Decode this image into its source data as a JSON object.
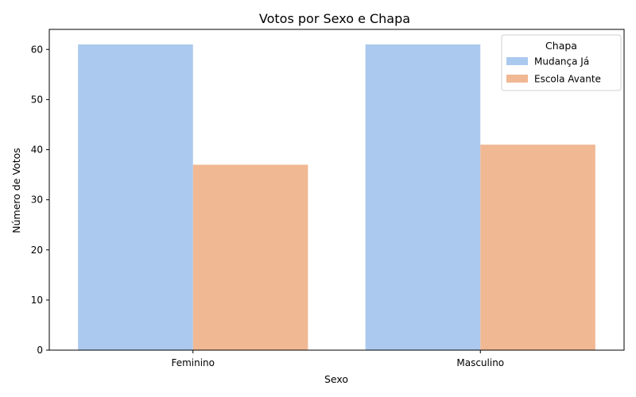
{
  "chart_data": {
    "type": "bar",
    "title": "Votos por Sexo e Chapa",
    "xlabel": "Sexo",
    "ylabel": "Número de Votos",
    "categories": [
      "Feminino",
      "Masculino"
    ],
    "series": [
      {
        "name": "Mudança Já",
        "values": [
          61,
          61
        ],
        "color": "#abc9ee"
      },
      {
        "name": "Escola Avante",
        "values": [
          37,
          41
        ],
        "color": "#f0b893"
      }
    ],
    "ylim": [
      0,
      64
    ],
    "yticks": [
      0,
      10,
      20,
      30,
      40,
      50,
      60
    ],
    "legend": {
      "title": "Chapa",
      "placement": "top-right"
    },
    "grid": false
  }
}
